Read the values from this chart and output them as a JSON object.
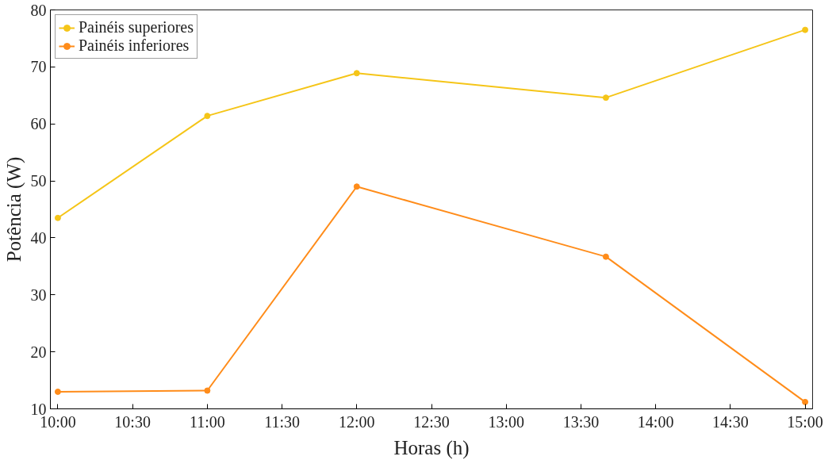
{
  "chart_data": {
    "type": "line",
    "xlabel": "Horas (h)",
    "ylabel": "Potência (W)",
    "x": [
      10,
      11,
      12,
      13.667,
      15
    ],
    "series": [
      {
        "name": "Painéis superiores",
        "color": "#f5c518",
        "values": [
          43.5,
          61.4,
          68.9,
          64.6,
          76.5
        ]
      },
      {
        "name": "Painéis inferiores",
        "color": "#ff8c1a",
        "values": [
          13.0,
          13.2,
          49.0,
          36.7,
          11.2
        ]
      }
    ],
    "xlim": [
      9.95,
      15.05
    ],
    "ylim": [
      10,
      80
    ],
    "xticks": [
      {
        "value": 10,
        "label": "10:00"
      },
      {
        "value": 10.5,
        "label": "10:30"
      },
      {
        "value": 11,
        "label": "11:00"
      },
      {
        "value": 11.5,
        "label": "11:30"
      },
      {
        "value": 12,
        "label": "12:00"
      },
      {
        "value": 12.5,
        "label": "12:30"
      },
      {
        "value": 13,
        "label": "13:00"
      },
      {
        "value": 13.5,
        "label": "13:30"
      },
      {
        "value": 14,
        "label": "14:00"
      },
      {
        "value": 14.5,
        "label": "14:30"
      },
      {
        "value": 15,
        "label": "15:00"
      }
    ],
    "yticks": [
      10,
      20,
      30,
      40,
      50,
      60,
      70,
      80
    ],
    "grid": false,
    "legend": "top left",
    "marker": "circle",
    "line_style": "solid"
  }
}
